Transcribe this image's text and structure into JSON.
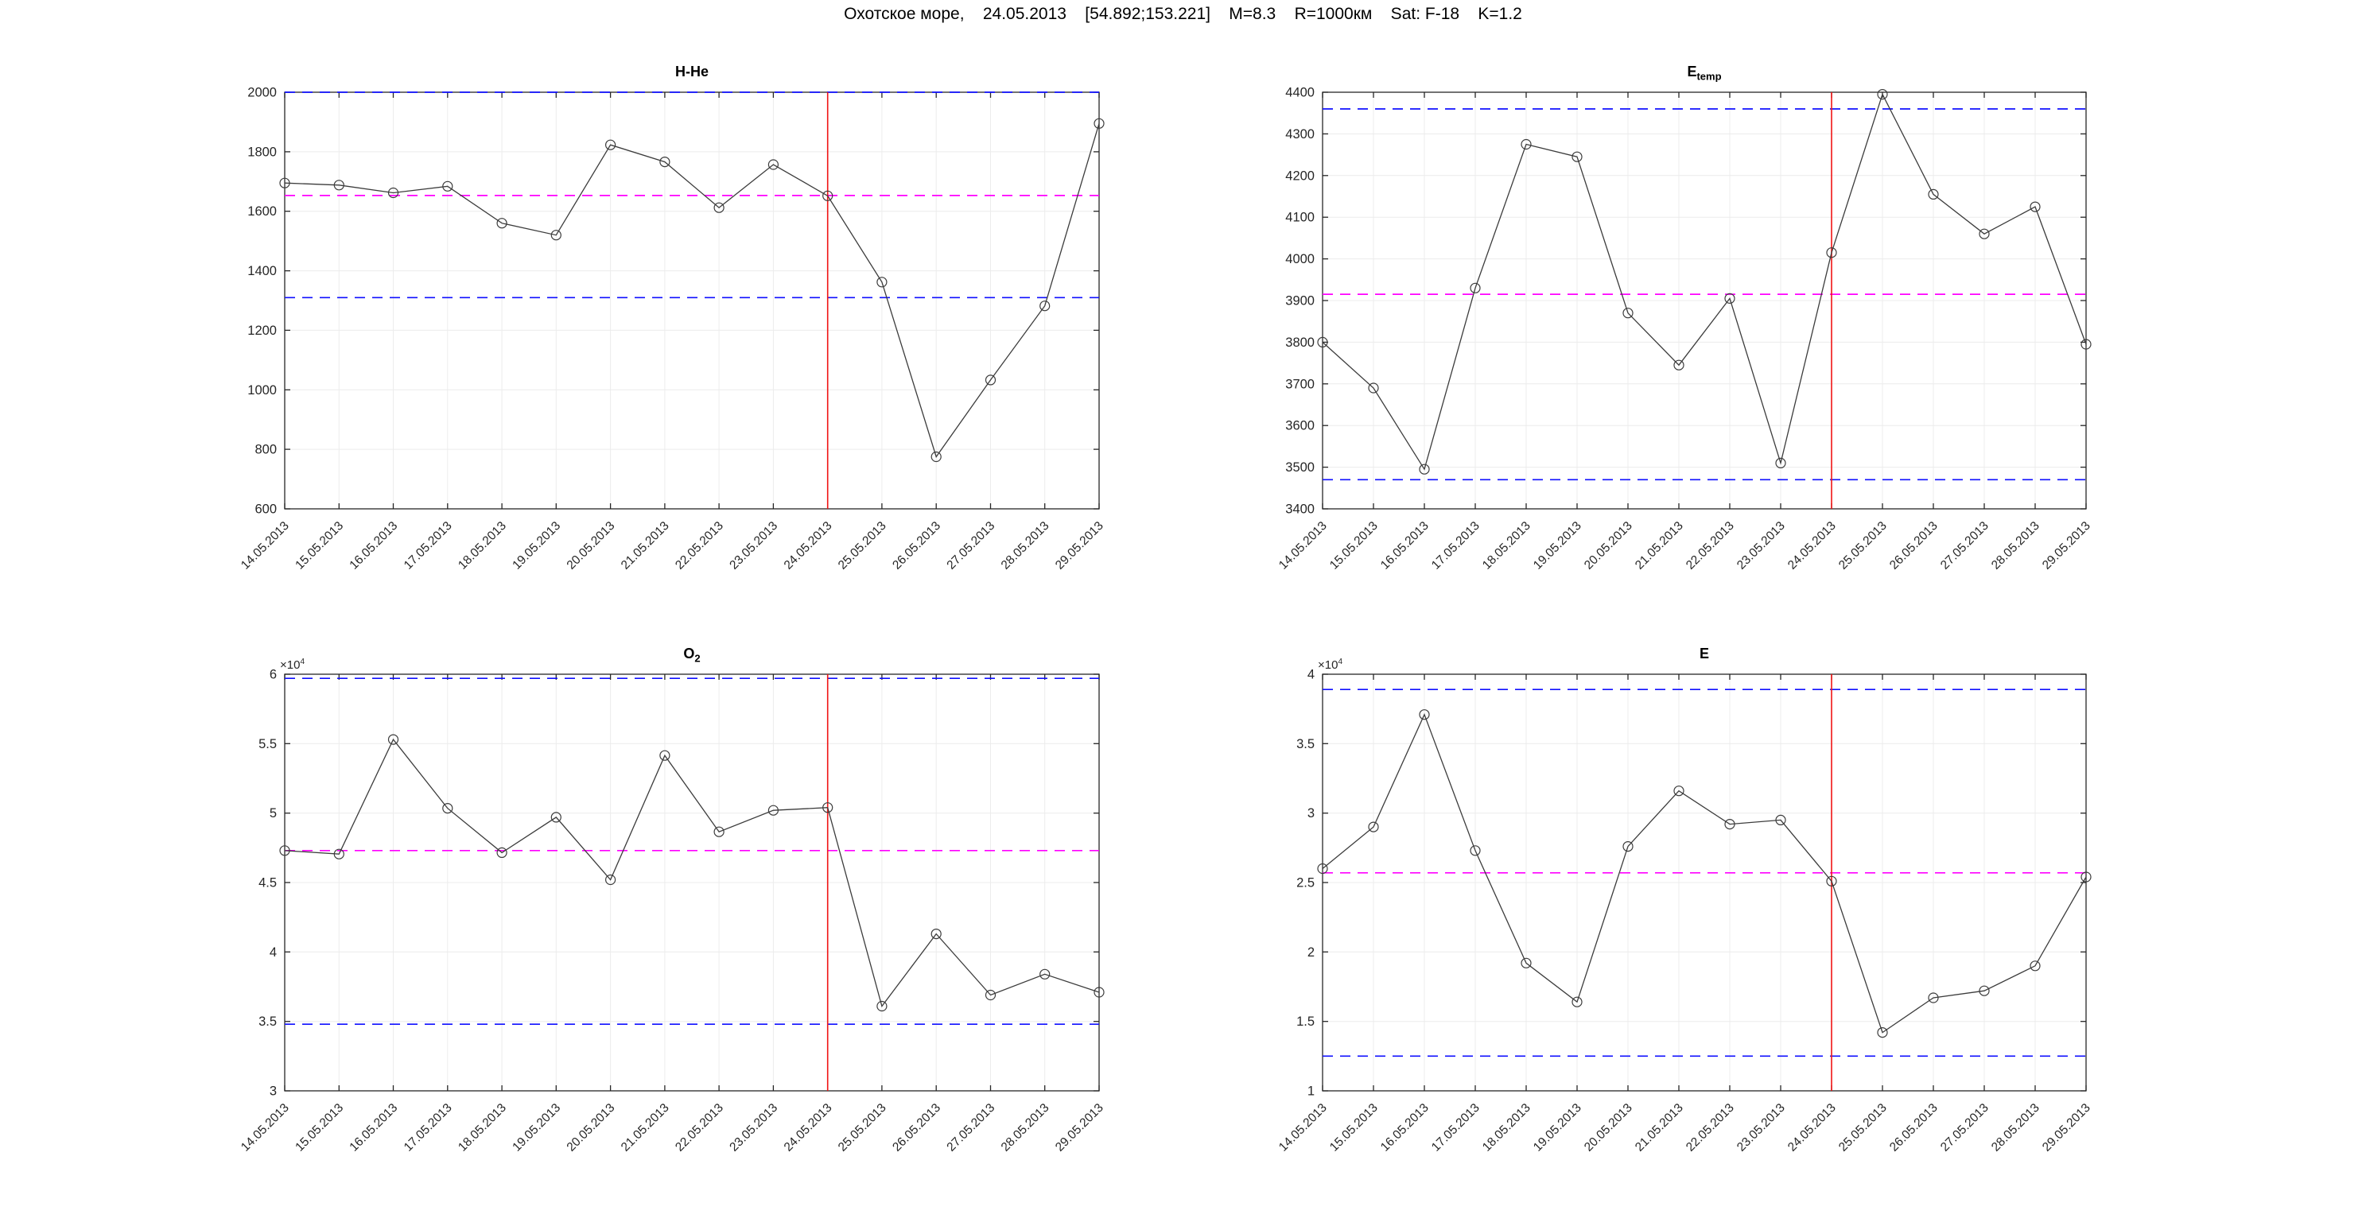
{
  "figure_title": "Охотское море,    24.05.2013    [54.892;153.221]    M=8.3    R=1000км    Sat: F-18    K=1.2",
  "colors": {
    "upper_lower_bound": "#1010ff",
    "mean_line": "#ff00ff",
    "event_line": "#f01414",
    "series": "#3c3c3c",
    "grid": "#ececec"
  },
  "dates": [
    "14.05.2013",
    "15.05.2013",
    "16.05.2013",
    "17.05.2013",
    "18.05.2013",
    "19.05.2013",
    "20.05.2013",
    "21.05.2013",
    "22.05.2013",
    "23.05.2013",
    "24.05.2013",
    "25.05.2013",
    "26.05.2013",
    "27.05.2013",
    "28.05.2013",
    "29.05.2013"
  ],
  "event_date": "24.05.2013",
  "event_index": 10,
  "chart_data": [
    {
      "type": "line",
      "title": {
        "main": "H-He",
        "sub": ""
      },
      "exp": {
        "base": "",
        "power": ""
      },
      "categories_ref": "dates",
      "values": [
        1695,
        1688,
        1662,
        1684,
        1560,
        1520,
        1823,
        1766,
        1612,
        1757,
        1652,
        1362,
        775,
        1033,
        1282,
        1895
      ],
      "ylim": [
        600,
        2000
      ],
      "yticks": [
        600,
        800,
        1000,
        1200,
        1400,
        1600,
        1800,
        2000
      ],
      "ytick_labels": [
        "600",
        "800",
        "1000",
        "1200",
        "1400",
        "1600",
        "1800",
        "2000"
      ],
      "lines": {
        "upper_blue": 2000,
        "lower_blue": 1310,
        "mean_magenta": 1653
      },
      "grid": true,
      "legend": "none"
    },
    {
      "type": "line",
      "title": {
        "main": "E",
        "sub": "temp"
      },
      "exp": {
        "base": "",
        "power": ""
      },
      "categories_ref": "dates",
      "values": [
        3800,
        3690,
        3495,
        3930,
        4275,
        4245,
        3870,
        3745,
        3905,
        3510,
        4015,
        4395,
        4155,
        4060,
        4125,
        3795
      ],
      "ylim": [
        3400,
        4400
      ],
      "yticks": [
        3400,
        3500,
        3600,
        3700,
        3800,
        3900,
        4000,
        4100,
        4200,
        4300,
        4400
      ],
      "ytick_labels": [
        "3400",
        "3500",
        "3600",
        "3700",
        "3800",
        "3900",
        "4000",
        "4100",
        "4200",
        "4300",
        "4400"
      ],
      "lines": {
        "upper_blue": 4360,
        "lower_blue": 3470,
        "mean_magenta": 3915
      },
      "grid": true,
      "legend": "none"
    },
    {
      "type": "line",
      "title": {
        "main": "O",
        "sub": "2"
      },
      "exp": {
        "base": "×10",
        "power": "4"
      },
      "categories_ref": "dates",
      "values": [
        47300,
        47050,
        55300,
        50350,
        47150,
        49700,
        45200,
        54150,
        48650,
        50200,
        50400,
        36100,
        41300,
        36900,
        38400,
        37100
      ],
      "ylim": [
        30000,
        60000
      ],
      "yticks": [
        30000,
        35000,
        40000,
        45000,
        50000,
        55000,
        60000
      ],
      "ytick_labels": [
        "3",
        "3.5",
        "4",
        "4.5",
        "5",
        "5.5",
        "6"
      ],
      "lines": {
        "upper_blue": 59700,
        "lower_blue": 34800,
        "mean_magenta": 47300
      },
      "grid": true,
      "legend": "none"
    },
    {
      "type": "line",
      "title": {
        "main": "E",
        "sub": ""
      },
      "exp": {
        "base": "×10",
        "power": "4"
      },
      "categories_ref": "dates",
      "values": [
        26000,
        29000,
        37100,
        27300,
        19200,
        16400,
        27600,
        31600,
        29200,
        29500,
        25100,
        14200,
        16700,
        17200,
        19000,
        25400
      ],
      "ylim": [
        10000,
        40000
      ],
      "yticks": [
        10000,
        15000,
        20000,
        25000,
        30000,
        35000,
        40000
      ],
      "ytick_labels": [
        "1",
        "1.5",
        "2",
        "2.5",
        "3",
        "3.5",
        "4"
      ],
      "lines": {
        "upper_blue": 38900,
        "lower_blue": 12500,
        "mean_magenta": 25700
      },
      "grid": true,
      "legend": "none"
    }
  ]
}
